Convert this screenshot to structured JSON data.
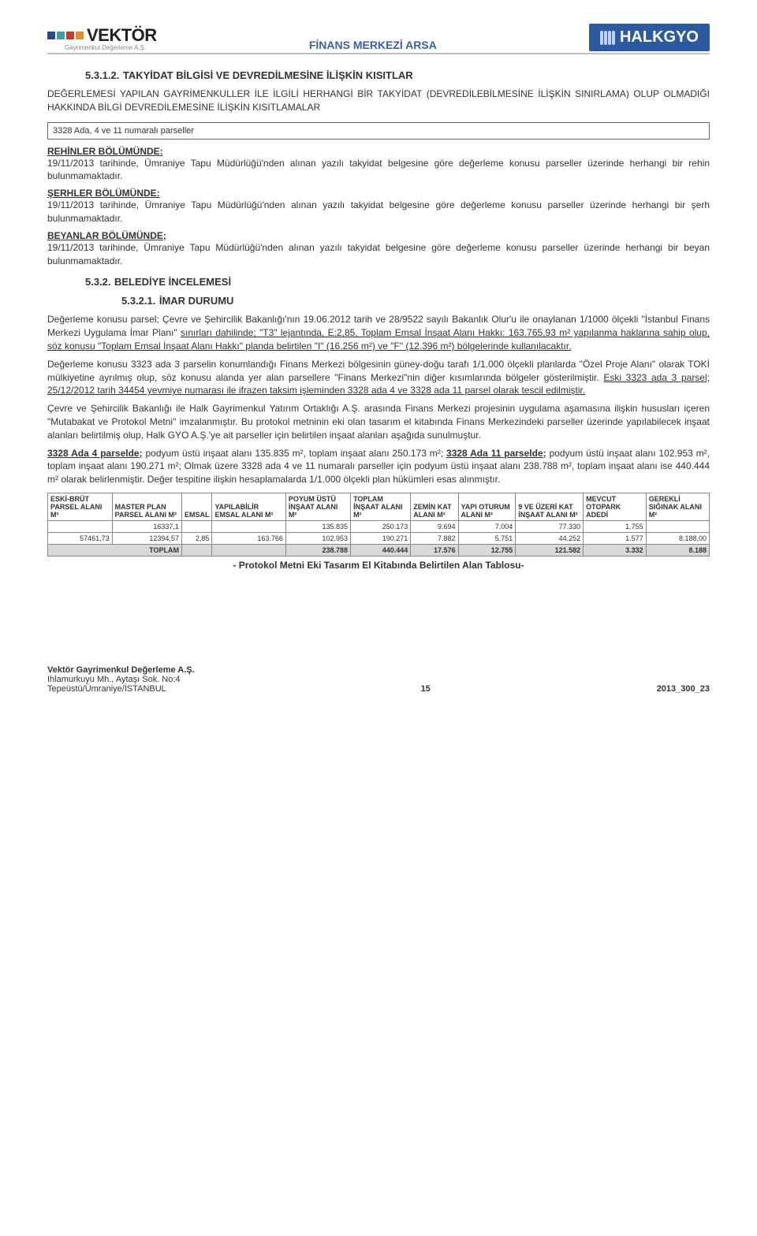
{
  "colors": {
    "header_title": "#3a5fa6",
    "halkgyo_bg": "#2b5aa0",
    "halkgyo_bar": "#bcd2f0",
    "grey_row": "#d9d9d9",
    "sq_blue": "#274b8f",
    "sq_teal": "#3da0a3",
    "sq_red": "#c63a2b",
    "sq_orange": "#e68a2e"
  },
  "header": {
    "brand": "VEKTÖR",
    "brand_sub": "Gayrimenkul Değerleme A.Ş.",
    "title": "FİNANS MERKEZİ ARSA",
    "halkgyo": "HALKGYO"
  },
  "sec1": {
    "num": "5.3.1.2.",
    "title": "TAKYİDAT BİLGİSİ VE DEVREDİLMESİNE İLİŞKİN KISITLAR",
    "lead": "DEĞERLEMESİ YAPILAN GAYRİMENKULLER İLE İLGİLİ HERHANGİ BİR TAKYİDAT (DEVREDİLEBİLMESİNE İLİŞKİN SINIRLAMA) OLUP OLMADIĞI HAKKINDA BİLGİ DEVREDİLEMESİNE İLİŞKİN KISITLAMALAR",
    "box": "3328 Ada, 4 ve 11 numaralı parseller",
    "rehinler_head": "REHİNLER BÖLÜMÜNDE:",
    "rehinler": "19/11/2013 tarihinde, Ümraniye Tapu Müdürlüğü'nden alınan yazılı takyidat belgesine göre değerleme konusu parseller üzerinde herhangi bir rehin bulunmamaktadır.",
    "serhler_head": "ŞERHLER BÖLÜMÜNDE:",
    "serhler": "19/11/2013 tarihinde, Ümraniye Tapu Müdürlüğü'nden alınan yazılı takyidat belgesine göre değerleme konusu parseller üzerinde herhangi bir şerh bulunmamaktadır.",
    "beyanlar_head": "BEYANLAR BÖLÜMÜNDE;",
    "beyanlar": "19/11/2013 tarihinde, Ümraniye Tapu Müdürlüğü'nden alınan yazılı takyidat belgesine göre değerleme konusu parseller üzerinde herhangi bir beyan bulunmamaktadır."
  },
  "sec2": {
    "num": "5.3.2.",
    "title": "BELEDİYE İNCELEMESİ",
    "sub_num": "5.3.2.1.",
    "sub_title": "İMAR DURUMU"
  },
  "para": {
    "p1a": "Değerleme konusu parsel; Çevre ve Şehircilik Bakanlığı'nın 19.06.2012 tarih ve 28/9522 sayılı Bakanlık Olur'u ile onaylanan 1/1000 ölçekli \"İstanbul Finans Merkezi Uygulama İmar Planı\" ",
    "p1u": "sınırları dahilinde; \"T3\" lejantında, E:2,85, Toplam Emsal İnşaat Alanı Hakkı: 163.765,93 m² yapılanma haklarına sahip olup, söz konusu \"Toplam Emsal İnşaat Alanı Hakkı\" planda belirtilen \"I\" (16.256 m²) ve \"F\" (12.396 m²) bölgelerinde kullanılacaktır.",
    "p2a": "Değerleme konusu 3323 ada 3 parselin konumlandığı Finans Merkezi bölgesinin güney-doğu tarafı 1/1.000 ölçekli planlarda \"Özel Proje Alanı\" olarak TOKİ mülkiyetine ayrılmış olup, söz konusu alanda yer alan parsellere \"Finans Merkezi\"nin diğer kısımlarında bölgeler gösterilmiştir. ",
    "p2u": "Eski 3323 ada 3 parsel; 25/12/2012 tarih 34454 yevmiye numarası ile ifrazen taksim işleminden 3328 ada 4 ve 3328 ada 11 parsel olarak tescil edilmiştir.",
    "p3": "Çevre ve Şehircilik Bakanlığı ile Halk Gayrimenkul Yatırım Ortaklığı A.Ş. arasında Finans Merkezi projesinin uygulama aşamasına ilişkin hususları içeren \"Mutabakat ve Protokol Metni\" imzalanmıştır. Bu protokol metninin eki olan tasarım el kitabında Finans Merkezindeki parseller üzerinde yapılabilecek inşaat alanları belirtilmiş olup, Halk GYO A.Ş.'ye ait parseller için belirtilen inşaat alanları aşağıda sunulmuştur.",
    "p4a": "3328 Ada 4 parselde;",
    "p4b": " podyum üstü inşaat alanı 135.835 m², toplam inşaat alanı 250.173 m²; ",
    "p4c": "3328 Ada 11 parselde;",
    "p4d": " podyum üstü inşaat alanı 102.953 m², toplam inşaat alanı 190.271 m²; Olmak üzere 3328 ada 4 ve 11 numaralı parseller için podyum üstü inşaat alanı 238.788 m², toplam inşaat alanı ise 440.444 m² olarak belirlenmiştir. Değer tespitine ilişkin hesaplamalarda 1/1.000 ölçekli plan hükümleri esas alınmıştır."
  },
  "table": {
    "headers": [
      "ESKİ-BRÜT PARSEL ALANI M²",
      "MASTER PLAN PARSEL ALANI M²",
      "EMSAL",
      "YAPILABİLİR EMSAL ALANI M²",
      "POYUM ÜSTÜ İNŞAAT ALANI M²",
      "TOPLAM İNŞAAT ALANI M²",
      "ZEMİN KAT ALANI M²",
      "YAPI OTURUM ALANI M²",
      "9 VE ÜZERİ KAT İNŞAAT ALANI M²",
      "MEVCUT OTOPARK ADEDİ",
      "GEREKLİ SIĞINAK ALANI M²"
    ],
    "rows": [
      [
        "",
        "16337,1",
        "",
        "",
        "135.835",
        "250.173",
        "9.694",
        "7.004",
        "77.330",
        "1.755",
        ""
      ],
      [
        "57461,73",
        "12394,57",
        "2,85",
        "163.766",
        "102.953",
        "190.271",
        "7.882",
        "5.751",
        "44.252",
        "1.577",
        "8.188,00"
      ]
    ],
    "total_label": "TOPLAM",
    "total": [
      "",
      "",
      "",
      "",
      "238.788",
      "440.444",
      "17.576",
      "12.755",
      "121.582",
      "3.332",
      "8.188"
    ],
    "caption": "- Protokol Metni Eki Tasarım El Kitabında Belirtilen Alan Tablosu-"
  },
  "footer": {
    "left1": "Vektör Gayrimenkul Değerleme A.Ş.",
    "left2": "Ihlamurkuyu Mh., Aytaşı Sok. No:4",
    "left3": "Tepeüstü/Ümraniye/İSTANBUL",
    "mid": "15",
    "right": "2013_300_23"
  }
}
